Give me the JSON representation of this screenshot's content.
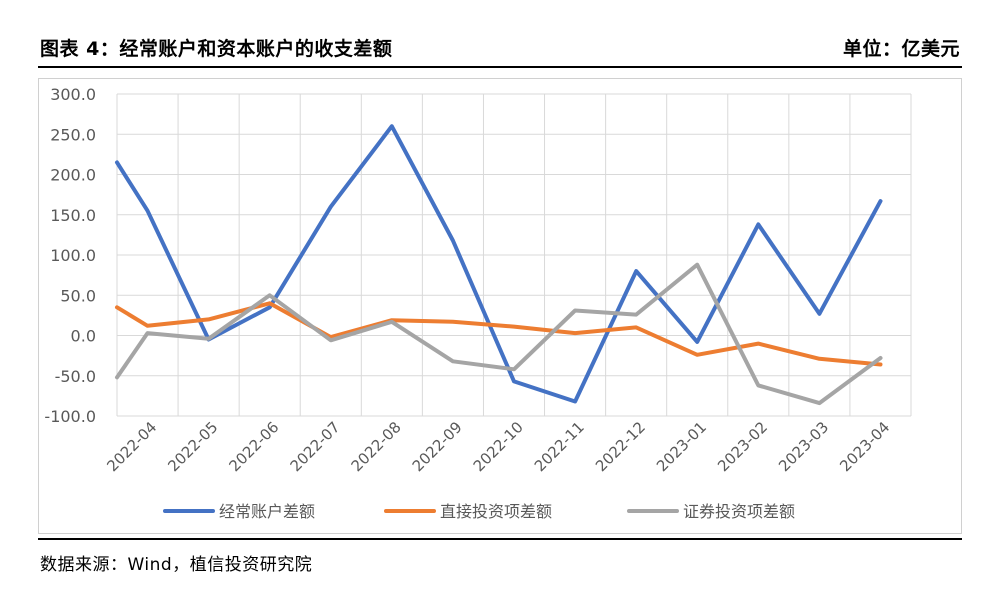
{
  "header": {
    "title": "图表 4：经常账户和资本账户的收支差额",
    "unit": "单位：亿美元"
  },
  "footer": {
    "source": "数据来源：Wind，植信投资研究院"
  },
  "chart_data": {
    "type": "line",
    "categories": [
      "2022-04",
      "2022-05",
      "2022-06",
      "2022-07",
      "2022-08",
      "2022-09",
      "2022-10",
      "2022-11",
      "2022-12",
      "2023-01",
      "2023-02",
      "2023-03",
      "2023-04"
    ],
    "y_tick_labels": [
      "300.0",
      "250.0",
      "200.0",
      "150.0",
      "100.0",
      "50.0",
      "0.0",
      "-50.0",
      "-100.0"
    ],
    "ylim": [
      -100,
      300
    ],
    "grid": true,
    "legend_position": "bottom",
    "series": [
      {
        "name": "经常账户差额",
        "color": "#4472C4",
        "x": [
          0,
          0.5,
          1.5,
          2.5,
          3.5,
          4.5,
          5.5,
          6.5,
          7.5,
          8.5,
          9.5,
          10.5,
          11.5,
          12.5
        ],
        "values": [
          215,
          155,
          -5,
          35,
          160,
          260,
          118,
          -57,
          -82,
          80,
          -8,
          138,
          27,
          167
        ]
      },
      {
        "name": "直接投资项差额",
        "color": "#ED7D31",
        "x": [
          0,
          0.5,
          1.5,
          2.5,
          3.5,
          4.5,
          5.5,
          6.5,
          7.5,
          8.5,
          9.5,
          10.5,
          11.5,
          12.5
        ],
        "values": [
          35,
          12,
          20,
          40,
          -2,
          19,
          17,
          11,
          3,
          10,
          -24,
          -10,
          -29,
          -36
        ]
      },
      {
        "name": "证券投资项差额",
        "color": "#A5A5A5",
        "x": [
          0,
          0.5,
          1.5,
          2.5,
          3.5,
          4.5,
          5.5,
          6.5,
          7.5,
          8.5,
          9.5,
          10.5,
          11.5,
          12.5
        ],
        "values": [
          -52,
          3,
          -4,
          50,
          -6,
          17,
          -32,
          -42,
          31,
          26,
          88,
          -62,
          -84,
          -28
        ]
      }
    ]
  }
}
